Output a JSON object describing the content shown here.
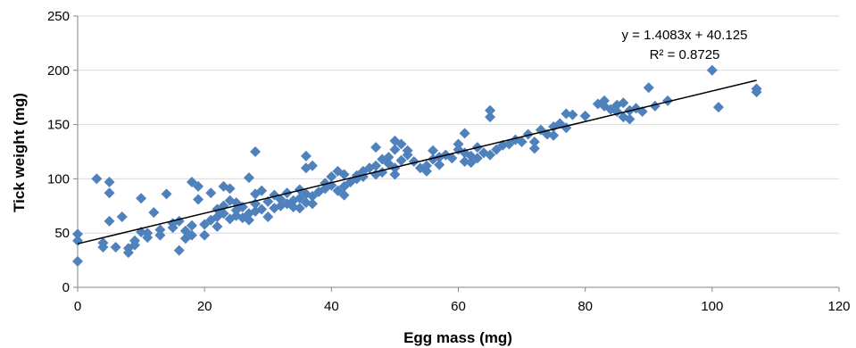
{
  "chart_data": {
    "type": "scatter",
    "title": "",
    "xlabel": "Egg mass (mg)",
    "ylabel": "Tick weight (mg)",
    "xlim": [
      0,
      120
    ],
    "ylim": [
      0,
      250
    ],
    "x_ticks": [
      0,
      20,
      40,
      60,
      80,
      100,
      120
    ],
    "y_ticks": [
      0,
      50,
      100,
      150,
      200,
      250
    ],
    "grid": "horizontal",
    "legend": "none",
    "marker": "diamond",
    "colors": {
      "points": "#4f81bd",
      "trendline": "#000000",
      "grid": "#d9d9d9"
    },
    "trendline": {
      "type": "linear",
      "slope": 1.4083,
      "intercept": 40.125,
      "x_range": [
        0,
        107
      ]
    },
    "annotations": [
      "y = 1.4083x + 40.125",
      "R² = 0.8725"
    ],
    "points": [
      [
        0,
        24
      ],
      [
        0,
        43
      ],
      [
        0,
        49
      ],
      [
        3,
        100
      ],
      [
        4,
        37
      ],
      [
        4,
        41
      ],
      [
        5,
        61
      ],
      [
        5,
        87
      ],
      [
        5,
        97
      ],
      [
        6,
        37
      ],
      [
        7,
        65
      ],
      [
        8,
        32
      ],
      [
        8,
        36
      ],
      [
        9,
        39
      ],
      [
        9,
        43
      ],
      [
        10,
        51
      ],
      [
        10,
        82
      ],
      [
        11,
        46
      ],
      [
        11,
        50
      ],
      [
        12,
        69
      ],
      [
        13,
        48
      ],
      [
        13,
        53
      ],
      [
        14,
        86
      ],
      [
        15,
        55
      ],
      [
        15,
        59
      ],
      [
        16,
        34
      ],
      [
        16,
        61
      ],
      [
        17,
        45
      ],
      [
        17,
        52
      ],
      [
        18,
        48
      ],
      [
        18,
        57
      ],
      [
        18,
        97
      ],
      [
        19,
        81
      ],
      [
        19,
        93
      ],
      [
        20,
        48
      ],
      [
        20,
        58
      ],
      [
        21,
        62
      ],
      [
        21,
        87
      ],
      [
        22,
        56
      ],
      [
        22,
        65
      ],
      [
        22,
        72
      ],
      [
        23,
        68
      ],
      [
        23,
        75
      ],
      [
        23,
        93
      ],
      [
        24,
        63
      ],
      [
        24,
        80
      ],
      [
        24,
        91
      ],
      [
        25,
        66
      ],
      [
        25,
        71
      ],
      [
        25,
        78
      ],
      [
        26,
        64
      ],
      [
        26,
        74
      ],
      [
        27,
        62
      ],
      [
        27,
        68
      ],
      [
        27,
        101
      ],
      [
        28,
        70
      ],
      [
        28,
        77
      ],
      [
        28,
        86
      ],
      [
        28,
        125
      ],
      [
        29,
        72
      ],
      [
        29,
        89
      ],
      [
        30,
        65
      ],
      [
        30,
        79
      ],
      [
        31,
        73
      ],
      [
        31,
        85
      ],
      [
        32,
        75
      ],
      [
        32,
        81
      ],
      [
        33,
        77
      ],
      [
        33,
        87
      ],
      [
        34,
        74
      ],
      [
        34,
        80
      ],
      [
        35,
        73
      ],
      [
        35,
        82
      ],
      [
        35,
        90
      ],
      [
        36,
        78
      ],
      [
        36,
        86
      ],
      [
        36,
        110
      ],
      [
        36,
        121
      ],
      [
        37,
        77
      ],
      [
        37,
        84
      ],
      [
        37,
        112
      ],
      [
        38,
        88
      ],
      [
        39,
        91
      ],
      [
        39,
        96
      ],
      [
        40,
        94
      ],
      [
        40,
        102
      ],
      [
        41,
        89
      ],
      [
        41,
        107
      ],
      [
        42,
        85
      ],
      [
        42,
        93
      ],
      [
        42,
        104
      ],
      [
        43,
        97
      ],
      [
        44,
        100
      ],
      [
        44,
        103
      ],
      [
        45,
        102
      ],
      [
        45,
        107
      ],
      [
        46,
        110
      ],
      [
        47,
        104
      ],
      [
        47,
        112
      ],
      [
        47,
        129
      ],
      [
        48,
        106
      ],
      [
        48,
        118
      ],
      [
        49,
        114
      ],
      [
        49,
        120
      ],
      [
        50,
        104
      ],
      [
        50,
        110
      ],
      [
        50,
        127
      ],
      [
        50,
        135
      ],
      [
        51,
        117
      ],
      [
        51,
        132
      ],
      [
        52,
        122
      ],
      [
        52,
        126
      ],
      [
        53,
        116
      ],
      [
        54,
        110
      ],
      [
        55,
        107
      ],
      [
        55,
        112
      ],
      [
        56,
        118
      ],
      [
        56,
        126
      ],
      [
        57,
        113
      ],
      [
        57,
        120
      ],
      [
        58,
        122
      ],
      [
        59,
        119
      ],
      [
        60,
        127
      ],
      [
        60,
        132
      ],
      [
        61,
        116
      ],
      [
        61,
        124
      ],
      [
        61,
        142
      ],
      [
        62,
        115
      ],
      [
        62,
        121
      ],
      [
        63,
        119
      ],
      [
        63,
        129
      ],
      [
        64,
        124
      ],
      [
        65,
        122
      ],
      [
        65,
        157
      ],
      [
        65,
        163
      ],
      [
        66,
        127
      ],
      [
        67,
        131
      ],
      [
        68,
        132
      ],
      [
        69,
        136
      ],
      [
        70,
        134
      ],
      [
        71,
        141
      ],
      [
        72,
        128
      ],
      [
        72,
        134
      ],
      [
        73,
        145
      ],
      [
        74,
        141
      ],
      [
        75,
        140
      ],
      [
        75,
        148
      ],
      [
        76,
        151
      ],
      [
        77,
        147
      ],
      [
        77,
        160
      ],
      [
        78,
        159
      ],
      [
        80,
        158
      ],
      [
        82,
        169
      ],
      [
        83,
        167
      ],
      [
        83,
        172
      ],
      [
        84,
        164
      ],
      [
        85,
        162
      ],
      [
        85,
        168
      ],
      [
        86,
        157
      ],
      [
        86,
        170
      ],
      [
        87,
        155
      ],
      [
        87,
        163
      ],
      [
        88,
        165
      ],
      [
        89,
        162
      ],
      [
        90,
        184
      ],
      [
        91,
        167
      ],
      [
        93,
        172
      ],
      [
        100,
        200
      ],
      [
        101,
        166
      ],
      [
        107,
        180
      ],
      [
        107,
        183
      ]
    ]
  }
}
